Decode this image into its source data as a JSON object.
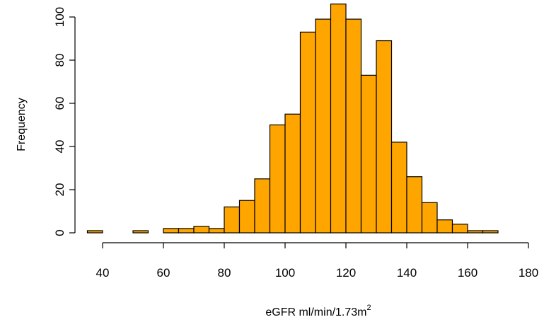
{
  "chart_data": {
    "type": "bar",
    "xlabel": "eGFR ml/min/1.73m",
    "xlabel_superscript": "2",
    "ylabel": "Frequency",
    "bar_color": "#FFA500",
    "bar_outline": "#000000",
    "bin_width": 5,
    "xlim": [
      35,
      180
    ],
    "ylim": [
      0,
      106
    ],
    "x_ticks": [
      40,
      60,
      80,
      100,
      120,
      140,
      160,
      180
    ],
    "y_ticks": [
      0,
      20,
      40,
      60,
      80,
      100
    ],
    "grid": false,
    "legend": "none",
    "bins": [
      {
        "x0": 35,
        "x1": 40,
        "value": 1
      },
      {
        "x0": 40,
        "x1": 45,
        "value": 0
      },
      {
        "x0": 45,
        "x1": 50,
        "value": 0
      },
      {
        "x0": 50,
        "x1": 55,
        "value": 1
      },
      {
        "x0": 55,
        "x1": 60,
        "value": 0
      },
      {
        "x0": 60,
        "x1": 65,
        "value": 2
      },
      {
        "x0": 65,
        "x1": 70,
        "value": 2
      },
      {
        "x0": 70,
        "x1": 75,
        "value": 3
      },
      {
        "x0": 75,
        "x1": 80,
        "value": 2
      },
      {
        "x0": 80,
        "x1": 85,
        "value": 12
      },
      {
        "x0": 85,
        "x1": 90,
        "value": 15
      },
      {
        "x0": 90,
        "x1": 95,
        "value": 25
      },
      {
        "x0": 95,
        "x1": 100,
        "value": 50
      },
      {
        "x0": 100,
        "x1": 105,
        "value": 55
      },
      {
        "x0": 105,
        "x1": 110,
        "value": 93
      },
      {
        "x0": 110,
        "x1": 115,
        "value": 99
      },
      {
        "x0": 115,
        "x1": 120,
        "value": 106
      },
      {
        "x0": 120,
        "x1": 125,
        "value": 99
      },
      {
        "x0": 125,
        "x1": 130,
        "value": 73
      },
      {
        "x0": 130,
        "x1": 135,
        "value": 89
      },
      {
        "x0": 135,
        "x1": 140,
        "value": 42
      },
      {
        "x0": 140,
        "x1": 145,
        "value": 26
      },
      {
        "x0": 145,
        "x1": 150,
        "value": 14
      },
      {
        "x0": 150,
        "x1": 155,
        "value": 6
      },
      {
        "x0": 155,
        "x1": 160,
        "value": 4
      },
      {
        "x0": 160,
        "x1": 165,
        "value": 1
      },
      {
        "x0": 165,
        "x1": 170,
        "value": 1
      }
    ]
  }
}
